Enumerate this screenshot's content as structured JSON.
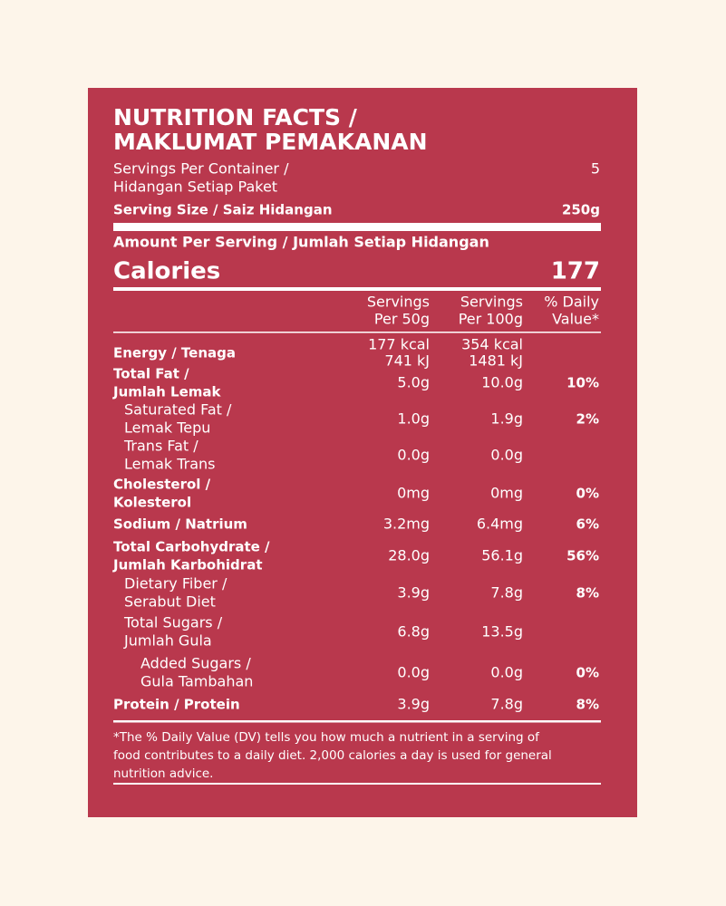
{
  "title": [
    "NUTRITION FACTS /",
    "MAKLUMAT PEMAKANAN"
  ],
  "servings_per_container": {
    "label": [
      "Servings Per Container /",
      "Hidangan Setiap Paket"
    ],
    "value": "5"
  },
  "serving_size": {
    "label": "Serving Size / Saiz Hidangan",
    "value": "250g"
  },
  "amount_per_serving": "Amount Per Serving / Jumlah Setiap Hidangan",
  "calories": {
    "label": "Calories",
    "value": "177"
  },
  "columns": [
    [
      "Servings",
      "Per 50g"
    ],
    [
      "Servings",
      "Per 100g"
    ],
    [
      "% Daily",
      "Value*"
    ]
  ],
  "rows": [
    {
      "label": [
        "Energy / Tenaga"
      ],
      "per_50g": [
        "177 kcal",
        "741 kJ"
      ],
      "per_100g": [
        "354 kcal",
        "1481 kJ"
      ],
      "dv": null
    },
    {
      "label": [
        "Total Fat /",
        "Jumlah Lemak"
      ],
      "per_50g": [
        "5.0g"
      ],
      "per_100g": [
        "10.0g"
      ],
      "dv": "10%"
    },
    {
      "label": [
        "Saturated Fat /",
        "Lemak Tepu"
      ],
      "per_50g": [
        "1.0g"
      ],
      "per_100g": [
        "1.9g"
      ],
      "dv": "2%"
    },
    {
      "label": [
        "Trans Fat /",
        "Lemak Trans"
      ],
      "per_50g": [
        "0.0g"
      ],
      "per_100g": [
        "0.0g"
      ],
      "dv": null
    },
    {
      "label": [
        "Cholesterol /",
        "Kolesterol"
      ],
      "per_50g": [
        "0mg"
      ],
      "per_100g": [
        "0mg"
      ],
      "dv": "0%"
    },
    {
      "label": [
        "Sodium / Natrium"
      ],
      "per_50g": [
        "3.2mg"
      ],
      "per_100g": [
        "6.4mg"
      ],
      "dv": "6%"
    },
    {
      "label": [
        "Total Carbohydrate /",
        "Jumlah Karbohidrat"
      ],
      "per_50g": [
        "28.0g"
      ],
      "per_100g": [
        "56.1g"
      ],
      "dv": "56%"
    },
    {
      "label": [
        "Dietary Fiber /",
        "Serabut Diet"
      ],
      "per_50g": [
        "3.9g"
      ],
      "per_100g": [
        "7.8g"
      ],
      "dv": "8%"
    },
    {
      "label": [
        "Total Sugars /",
        "Jumlah Gula"
      ],
      "per_50g": [
        "6.8g"
      ],
      "per_100g": [
        "13.5g"
      ],
      "dv": null
    },
    {
      "label": [
        "Added Sugars /",
        "Gula Tambahan"
      ],
      "per_50g": [
        "0.0g"
      ],
      "per_100g": [
        "0.0g"
      ],
      "dv": "0%"
    },
    {
      "label": [
        "Protein / Protein"
      ],
      "per_50g": [
        "3.9g"
      ],
      "per_100g": [
        "7.8g"
      ],
      "dv": "8%"
    }
  ],
  "footnote": [
    "*The % Daily Value (DV) tells you how much a nutrient in a serving of",
    "food contributes to a daily diet. 2,000 calories a day is used for general",
    "nutrition advice."
  ]
}
